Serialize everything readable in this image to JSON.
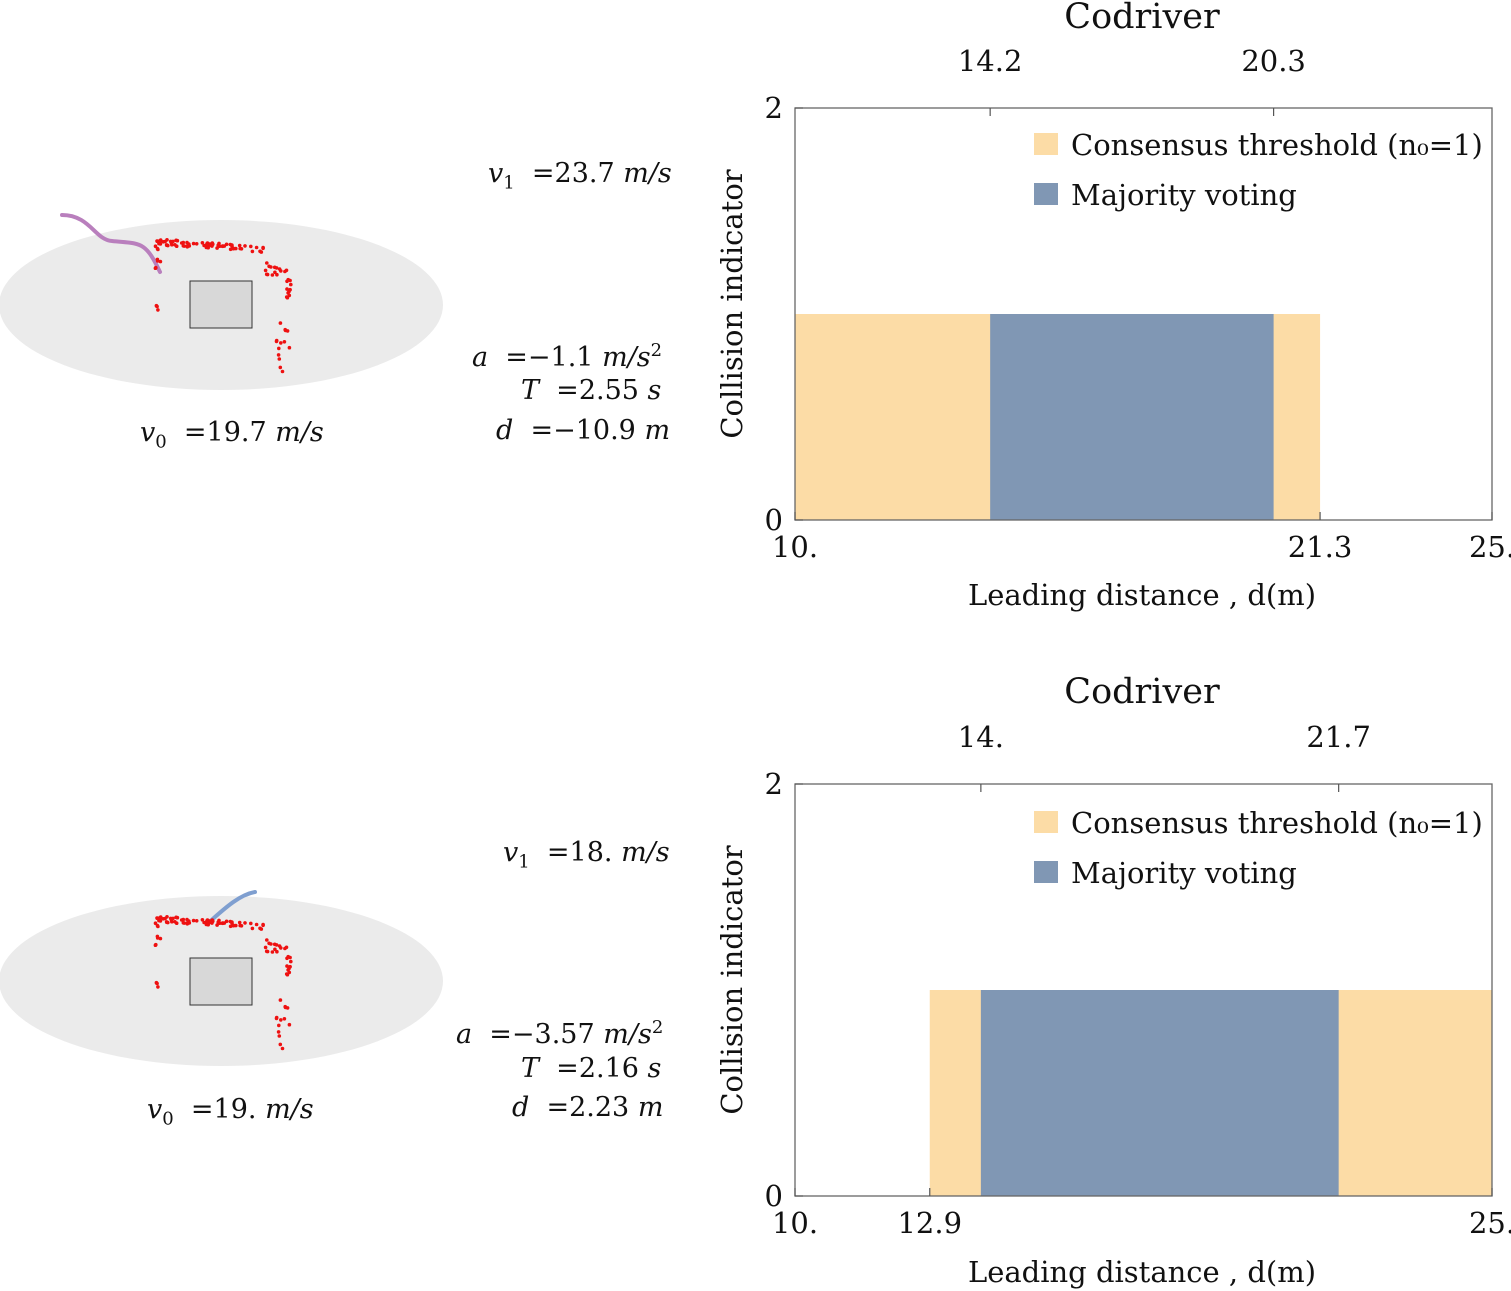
{
  "panels": [
    {
      "scene": {
        "v1_symbol": "v",
        "v1_sub": "1",
        "v1_value": "23.7",
        "v1_unit": "m/s",
        "v0_symbol": "v",
        "v0_sub": "0",
        "v0_value": "19.7",
        "v0_unit": "m/s",
        "a_symbol": "a",
        "a_value": "−1.1",
        "a_unit": "m/s",
        "a_exp": "2",
        "T_symbol": "T",
        "T_value": "2.55",
        "T_unit": "s",
        "d_symbol": "d",
        "d_value": "−10.9",
        "d_unit": "m",
        "trajectory_color": "#b97fbd",
        "point_color": "#ee1111",
        "ellipse_color": "#ebebeb",
        "vehicle_color": "#d8d8d8"
      }
    },
    {
      "scene": {
        "v1_symbol": "v",
        "v1_sub": "1",
        "v1_value": "18.",
        "v1_unit": "m/s",
        "v0_symbol": "v",
        "v0_sub": "0",
        "v0_value": "19.",
        "v0_unit": "m/s",
        "a_symbol": "a",
        "a_value": "−3.57",
        "a_unit": "m/s",
        "a_exp": "2",
        "T_symbol": "T",
        "T_value": "2.16",
        "T_unit": "s",
        "d_symbol": "d",
        "d_value": "2.23",
        "d_unit": "m",
        "trajectory_color": "#7f9fd0",
        "point_color": "#ee1111",
        "ellipse_color": "#ebebeb",
        "vehicle_color": "#d8d8d8"
      }
    }
  ],
  "chart_data": [
    {
      "type": "area",
      "title": "Codriver",
      "xlabel": "Leading distance , d(m)",
      "ylabel": "Collision indicator",
      "xlim": [
        10,
        25
      ],
      "ylim": [
        0,
        2
      ],
      "bottom_ticks": [
        "10.",
        "21.3",
        "25."
      ],
      "bottom_tick_values": [
        10,
        21.3,
        25
      ],
      "top_ticks": [
        "14.2",
        "20.3"
      ],
      "top_tick_values": [
        14.2,
        20.3
      ],
      "y_ticks": [
        "0",
        "2"
      ],
      "y_tick_values": [
        0,
        2
      ],
      "series": [
        {
          "name": "Consensus threshold",
          "legend_math": "(n₀=1)",
          "color": "#fcdca6",
          "x_start": 10,
          "x_end": 21.3,
          "value": 1
        },
        {
          "name": "Majority voting",
          "color": "#8097b4",
          "x_start": 14.2,
          "x_end": 20.3,
          "value": 1
        }
      ],
      "legend_position": "top-right",
      "grid": false
    },
    {
      "type": "area",
      "title": "Codriver",
      "xlabel": "Leading distance , d(m)",
      "ylabel": "Collision indicator",
      "xlim": [
        10,
        25
      ],
      "ylim": [
        0,
        2
      ],
      "bottom_ticks": [
        "10.",
        "12.9",
        "25."
      ],
      "bottom_tick_values": [
        10,
        12.9,
        25
      ],
      "top_ticks": [
        "14.",
        "21.7"
      ],
      "top_tick_values": [
        14,
        21.7
      ],
      "y_ticks": [
        "0",
        "2"
      ],
      "y_tick_values": [
        0,
        2
      ],
      "series": [
        {
          "name": "Consensus threshold",
          "legend_math": "(n₀=1)",
          "color": "#fcdca6",
          "x_start": 12.9,
          "x_end": 25,
          "value": 1
        },
        {
          "name": "Majority voting",
          "color": "#8097b4",
          "x_start": 14,
          "x_end": 21.7,
          "value": 1
        }
      ],
      "legend_position": "top-right",
      "grid": false
    }
  ]
}
